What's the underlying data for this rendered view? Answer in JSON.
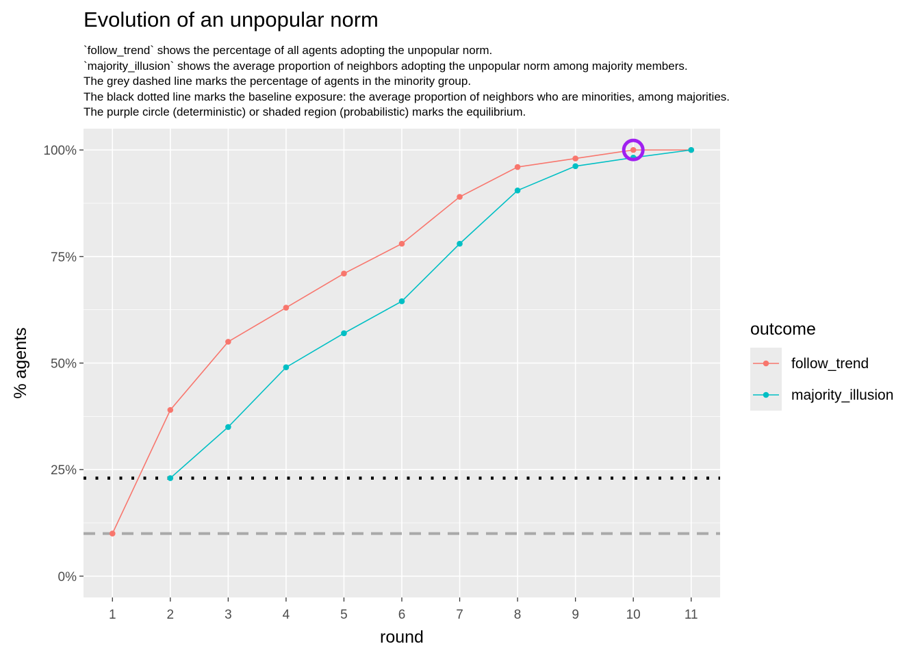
{
  "chart_data": {
    "type": "line",
    "title": "Evolution of an unpopular norm",
    "subtitle_lines": [
      "`follow_trend` shows the percentage of all agents adopting the unpopular norm.",
      "`majority_illusion` shows the average proportion of neighbors adopting the unpopular norm among majority members.",
      "The grey dashed line marks the percentage of agents in the minority group.",
      "The black dotted line marks the baseline exposure: the average proportion of neighbors who are minorities, among majorities.",
      "The purple circle (deterministic) or shaded region (probabilistic) marks the equilibrium."
    ],
    "xlabel": "round",
    "ylabel": "% agents",
    "x": [
      1,
      2,
      3,
      4,
      5,
      6,
      7,
      8,
      9,
      10,
      11
    ],
    "xlim": [
      0.5,
      11.5
    ],
    "ylim": [
      -0.05,
      1.05
    ],
    "y_ticks": [
      0,
      0.25,
      0.5,
      0.75,
      1.0
    ],
    "y_tick_labels": [
      "0%",
      "25%",
      "50%",
      "75%",
      "100%"
    ],
    "legend": {
      "title": "outcome",
      "position": "right"
    },
    "series": [
      {
        "name": "follow_trend",
        "color": "#F8766D",
        "values": [
          0.1,
          0.39,
          0.55,
          0.63,
          0.71,
          0.78,
          0.89,
          0.96,
          0.98,
          1.0,
          1.0
        ]
      },
      {
        "name": "majority_illusion",
        "color": "#00BFC4",
        "values": [
          null,
          0.23,
          0.35,
          0.49,
          0.57,
          0.645,
          0.78,
          0.905,
          0.962,
          0.982,
          1.0
        ]
      }
    ],
    "reference_lines": [
      {
        "description": "minority group share",
        "style": "dashed",
        "color": "#A9A9A9",
        "y": 0.1
      },
      {
        "description": "baseline exposure",
        "style": "dotted",
        "color": "#000000",
        "y": 0.23
      }
    ],
    "equilibrium_marker": {
      "x": 10,
      "y": 1.0,
      "color": "#A020F0"
    },
    "grid": true,
    "panel_background": "#EBEBEB"
  }
}
